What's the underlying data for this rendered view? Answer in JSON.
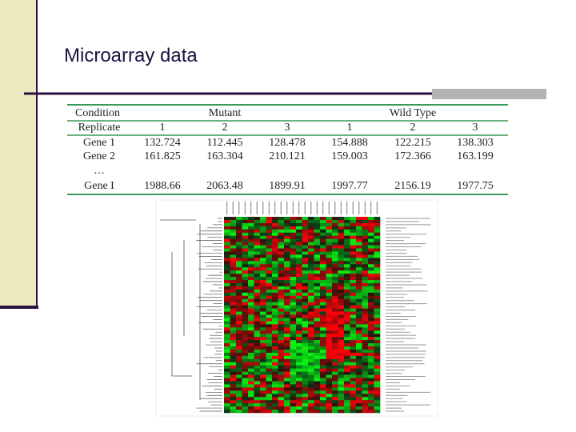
{
  "title": "Microarray data",
  "table": {
    "header": [
      "Condition",
      "Mutant",
      "Wild Type"
    ],
    "rows": [
      [
        "Replicate",
        "1",
        "2",
        "3",
        "1",
        "2",
        "3"
      ],
      [
        "Gene 1",
        "132.724",
        "112.445",
        "128.478",
        "154.888",
        "122.215",
        "138.303"
      ],
      [
        "Gene 2",
        "161.825",
        "163.304",
        "210.121",
        "159.003",
        "172.366",
        "163.199"
      ],
      [
        "…"
      ],
      [
        "Gene I",
        "1988.66",
        "2063.48",
        "1899.91",
        "1997.77",
        "2156.19",
        "1977.75"
      ]
    ]
  }
}
